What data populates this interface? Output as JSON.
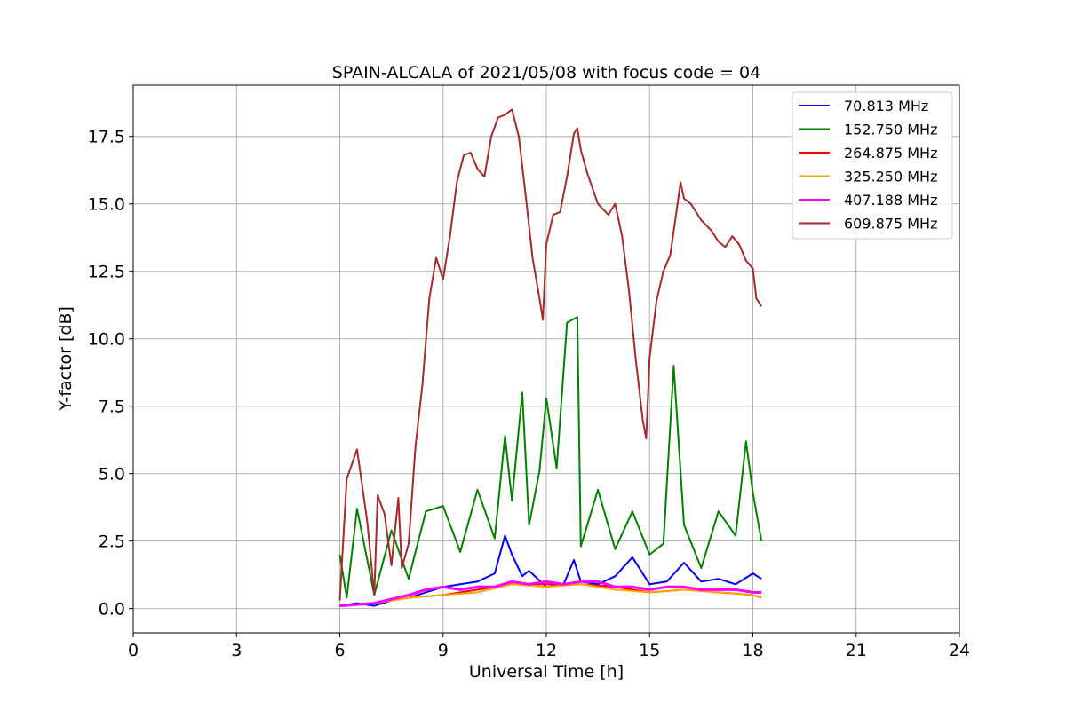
{
  "chart_data": {
    "type": "line",
    "title": "SPAIN-ALCALA of 2021/05/08 with focus code = 04",
    "xlabel": "Universal Time [h]",
    "ylabel": "Y-factor [dB]",
    "xlim": [
      0,
      24
    ],
    "ylim": [
      -0.9,
      19.4
    ],
    "xticks": [
      0,
      3,
      6,
      9,
      12,
      15,
      18,
      21,
      24
    ],
    "yticks": [
      0.0,
      2.5,
      5.0,
      7.5,
      10.0,
      12.5,
      15.0,
      17.5
    ],
    "xtick_labels": [
      "0",
      "3",
      "6",
      "9",
      "12",
      "15",
      "18",
      "21",
      "24"
    ],
    "ytick_labels": [
      "0.0",
      "2.5",
      "5.0",
      "7.5",
      "10.0",
      "12.5",
      "15.0",
      "17.5"
    ],
    "grid": true,
    "legend_position": "top-right",
    "series": [
      {
        "name": " 70.813 MHz",
        "color": "#0000ff",
        "x": [
          6.0,
          6.5,
          7.0,
          7.5,
          8.0,
          8.5,
          9.0,
          9.5,
          10.0,
          10.5,
          10.8,
          11.0,
          11.3,
          11.5,
          12.0,
          12.5,
          12.8,
          13.0,
          13.5,
          14.0,
          14.5,
          15.0,
          15.5,
          16.0,
          16.5,
          17.0,
          17.5,
          18.0,
          18.25
        ],
        "y": [
          0.1,
          0.2,
          0.1,
          0.3,
          0.4,
          0.6,
          0.8,
          0.9,
          1.0,
          1.3,
          2.7,
          2.0,
          1.2,
          1.4,
          0.8,
          0.9,
          1.8,
          1.0,
          0.9,
          1.2,
          1.9,
          0.9,
          1.0,
          1.7,
          1.0,
          1.1,
          0.9,
          1.3,
          1.1
        ]
      },
      {
        "name": "152.750 MHz",
        "color": "#008000",
        "x": [
          6.0,
          6.2,
          6.5,
          7.0,
          7.5,
          8.0,
          8.5,
          9.0,
          9.5,
          10.0,
          10.5,
          10.8,
          11.0,
          11.3,
          11.5,
          11.8,
          12.0,
          12.3,
          12.6,
          12.9,
          13.0,
          13.5,
          14.0,
          14.5,
          15.0,
          15.4,
          15.7,
          16.0,
          16.5,
          17.0,
          17.5,
          17.8,
          18.0,
          18.25
        ],
        "y": [
          2.0,
          0.4,
          3.7,
          0.5,
          2.9,
          1.1,
          3.6,
          3.8,
          2.1,
          4.4,
          2.6,
          6.4,
          4.0,
          8.0,
          3.1,
          5.1,
          7.8,
          5.2,
          10.6,
          10.8,
          2.3,
          4.4,
          2.2,
          3.6,
          2.0,
          2.4,
          9.0,
          3.1,
          1.5,
          3.6,
          2.7,
          6.2,
          4.3,
          2.5
        ]
      },
      {
        "name": "264.875 MHz",
        "color": "#ff0000",
        "x": [
          6.0,
          7.0,
          8.0,
          9.0,
          10.0,
          11.0,
          12.0,
          13.0,
          14.0,
          15.0,
          16.0,
          17.0,
          18.0,
          18.25
        ],
        "y": [
          0.1,
          0.2,
          0.4,
          0.5,
          0.7,
          0.9,
          0.9,
          0.9,
          0.8,
          0.6,
          0.7,
          0.6,
          0.5,
          0.4
        ]
      },
      {
        "name": "325.250 MHz",
        "color": "#ffa500",
        "x": [
          6.0,
          7.0,
          8.0,
          9.0,
          10.0,
          11.0,
          12.0,
          13.0,
          14.0,
          15.0,
          16.0,
          17.0,
          18.0,
          18.25
        ],
        "y": [
          0.1,
          0.2,
          0.4,
          0.5,
          0.6,
          0.9,
          0.8,
          0.9,
          0.7,
          0.6,
          0.7,
          0.6,
          0.5,
          0.4
        ]
      },
      {
        "name": "407.188 MHz",
        "color": "#ff00ff",
        "x": [
          6.0,
          7.0,
          8.0,
          8.5,
          9.0,
          9.5,
          10.0,
          10.5,
          11.0,
          11.5,
          12.0,
          12.5,
          13.0,
          13.5,
          14.0,
          14.5,
          15.0,
          15.5,
          16.0,
          16.5,
          17.0,
          17.5,
          18.0,
          18.25
        ],
        "y": [
          0.1,
          0.2,
          0.5,
          0.7,
          0.8,
          0.7,
          0.8,
          0.8,
          1.0,
          0.9,
          1.0,
          0.9,
          1.0,
          1.0,
          0.8,
          0.8,
          0.7,
          0.8,
          0.8,
          0.7,
          0.7,
          0.7,
          0.6,
          0.6
        ]
      },
      {
        "name": "609.875 MHz",
        "color": "#a52a2a",
        "x": [
          6.0,
          6.2,
          6.5,
          6.6,
          6.8,
          7.0,
          7.1,
          7.3,
          7.5,
          7.7,
          7.8,
          8.0,
          8.2,
          8.4,
          8.6,
          8.8,
          9.0,
          9.2,
          9.4,
          9.6,
          9.8,
          10.0,
          10.2,
          10.4,
          10.6,
          10.8,
          11.0,
          11.2,
          11.4,
          11.6,
          11.8,
          11.9,
          12.0,
          12.2,
          12.4,
          12.6,
          12.8,
          12.9,
          13.0,
          13.2,
          13.5,
          13.8,
          14.0,
          14.2,
          14.4,
          14.6,
          14.8,
          14.9,
          15.0,
          15.2,
          15.4,
          15.6,
          15.8,
          15.9,
          16.0,
          16.2,
          16.5,
          16.8,
          17.0,
          17.2,
          17.4,
          17.6,
          17.8,
          18.0,
          18.1,
          18.25
        ],
        "y": [
          0.3,
          4.8,
          5.9,
          5.0,
          3.2,
          0.5,
          4.2,
          3.5,
          1.6,
          4.1,
          1.5,
          2.4,
          6.0,
          8.3,
          11.5,
          13.0,
          12.2,
          13.8,
          15.8,
          16.8,
          16.9,
          16.3,
          16.0,
          17.5,
          18.2,
          18.3,
          18.5,
          17.5,
          15.3,
          13.0,
          11.5,
          10.7,
          13.5,
          14.6,
          14.7,
          16.0,
          17.6,
          17.8,
          17.0,
          16.1,
          15.0,
          14.6,
          15.0,
          13.8,
          11.8,
          9.2,
          7.0,
          6.3,
          9.3,
          11.4,
          12.5,
          13.1,
          14.9,
          15.8,
          15.2,
          15.0,
          14.4,
          14.0,
          13.6,
          13.4,
          13.8,
          13.5,
          12.9,
          12.6,
          11.5,
          11.2
        ]
      }
    ]
  }
}
